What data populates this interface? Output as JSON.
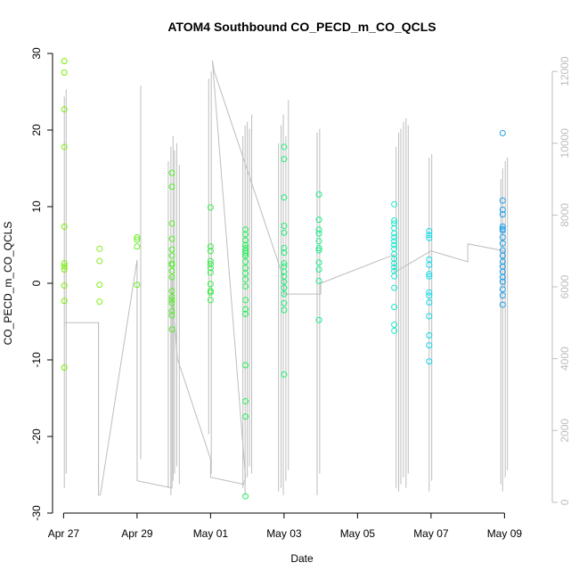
{
  "chart_data": {
    "type": "scatter",
    "title": "ATOM4 Southbound CO_PECD_m_CO_QCLS",
    "xlabel": "Date",
    "ylabel": "CO_PECD_m_CO_QCLS",
    "x_unit": "days since Apr 27",
    "xlim": [
      -0.3,
      13.3
    ],
    "ylim": [
      -30,
      30
    ],
    "y_ticks": [
      -30,
      -20,
      -10,
      0,
      10,
      20,
      30
    ],
    "x_ticks": [
      {
        "day": 0,
        "label": "Apr 27"
      },
      {
        "day": 2,
        "label": "Apr 29"
      },
      {
        "day": 4,
        "label": "May 01"
      },
      {
        "day": 6,
        "label": "May 03"
      },
      {
        "day": 8,
        "label": "May 05"
      },
      {
        "day": 10,
        "label": "May 07"
      },
      {
        "day": 12,
        "label": "May 09"
      }
    ],
    "secondary_axis": {
      "label": "",
      "ylim": [
        -300,
        12500
      ],
      "ticks": [
        0,
        2000,
        4000,
        6000,
        8000,
        10000,
        12000
      ],
      "color": "#bdbdbd"
    },
    "altitude_trace": [
      [
        0.0,
        5000
      ],
      [
        0.0,
        5000
      ],
      [
        0.95,
        5000
      ],
      [
        0.95,
        200
      ],
      [
        1.0,
        200
      ],
      [
        2.0,
        6750
      ],
      [
        2.0,
        600
      ],
      [
        2.95,
        400
      ],
      [
        2.95,
        6300
      ],
      [
        2.95,
        6000
      ],
      [
        3.1,
        4000
      ],
      [
        4.0,
        1200
      ],
      [
        4.0,
        700
      ],
      [
        4.9,
        500
      ],
      [
        4.95,
        700
      ],
      [
        4.05,
        12300
      ],
      [
        4.1,
        12000
      ],
      [
        6.0,
        6200
      ],
      [
        6.0,
        5800
      ],
      [
        7.0,
        5800
      ],
      [
        7.0,
        6100
      ],
      [
        9.0,
        6900
      ],
      [
        9.0,
        6400
      ],
      [
        10.0,
        7000
      ],
      [
        11.0,
        6700
      ],
      [
        11.0,
        7200
      ],
      [
        12.0,
        7000
      ],
      [
        12.0,
        6000
      ]
    ],
    "altitude_curtains": [
      {
        "day": 0.02,
        "min": 400,
        "max": 11300
      },
      {
        "day": 0.07,
        "min": 800,
        "max": 11500
      },
      {
        "day": 0.95,
        "min": 200,
        "max": 5000
      },
      {
        "day": 2.1,
        "min": 1200,
        "max": 11600
      },
      {
        "day": 2.85,
        "min": 400,
        "max": 9500
      },
      {
        "day": 2.92,
        "min": 200,
        "max": 9900
      },
      {
        "day": 2.98,
        "min": 600,
        "max": 10200
      },
      {
        "day": 3.02,
        "min": 800,
        "max": 9800
      },
      {
        "day": 3.08,
        "min": 1000,
        "max": 10000
      },
      {
        "day": 3.15,
        "min": 500,
        "max": 9400
      },
      {
        "day": 3.95,
        "min": 1900,
        "max": 11800
      },
      {
        "day": 4.02,
        "min": 800,
        "max": 12000
      },
      {
        "day": 4.88,
        "min": 400,
        "max": 10200
      },
      {
        "day": 4.94,
        "min": 200,
        "max": 10500
      },
      {
        "day": 5.0,
        "min": 700,
        "max": 10600
      },
      {
        "day": 5.06,
        "min": 1000,
        "max": 10400
      },
      {
        "day": 5.12,
        "min": 800,
        "max": 10800
      },
      {
        "day": 5.85,
        "min": 300,
        "max": 10000
      },
      {
        "day": 5.92,
        "min": 400,
        "max": 10500
      },
      {
        "day": 5.98,
        "min": 200,
        "max": 10800
      },
      {
        "day": 6.05,
        "min": 600,
        "max": 10200
      },
      {
        "day": 6.12,
        "min": 900,
        "max": 11200
      },
      {
        "day": 6.9,
        "min": 200,
        "max": 10300
      },
      {
        "day": 6.97,
        "min": 800,
        "max": 10400
      },
      {
        "day": 9.05,
        "min": 400,
        "max": 9900
      },
      {
        "day": 9.12,
        "min": 300,
        "max": 10300
      },
      {
        "day": 9.18,
        "min": 500,
        "max": 10400
      },
      {
        "day": 9.25,
        "min": 700,
        "max": 10600
      },
      {
        "day": 9.32,
        "min": 400,
        "max": 10700
      },
      {
        "day": 9.38,
        "min": 800,
        "max": 10500
      },
      {
        "day": 9.95,
        "min": 300,
        "max": 9600
      },
      {
        "day": 10.02,
        "min": 600,
        "max": 9700
      },
      {
        "day": 11.9,
        "min": 500,
        "max": 9000
      },
      {
        "day": 11.95,
        "min": 300,
        "max": 9300
      },
      {
        "day": 12.02,
        "min": 700,
        "max": 9500
      },
      {
        "day": 12.08,
        "min": 900,
        "max": 9600
      }
    ],
    "groups": [
      {
        "day": 0.02,
        "color": "#77ef00",
        "values": [
          29.0,
          27.5,
          22.7,
          17.8,
          7.4,
          2.6,
          1.8,
          2.2,
          -0.3,
          -2.3,
          -11.0
        ]
      },
      {
        "day": 0.98,
        "color": "#84ee1a",
        "values": [
          4.5,
          2.9,
          -0.2,
          -2.4
        ]
      },
      {
        "day": 2.0,
        "color": "#66ef20",
        "values": [
          6.0,
          5.7,
          4.8,
          -0.2
        ]
      },
      {
        "day": 2.95,
        "color": "#55ef2a",
        "values": [
          14.4,
          12.6,
          7.8,
          5.8,
          4.4,
          3.6,
          2.6,
          2.4,
          1.6,
          0.8,
          -1.0,
          -1.8,
          -2.2,
          -2.6,
          -3.6,
          -4.2,
          -6.0
        ]
      },
      {
        "day": 4.0,
        "color": "#33ee44",
        "values": [
          9.9,
          4.8,
          4.2,
          2.9,
          2.5,
          2.0,
          1.4,
          -0.1,
          -1.0,
          -1.2,
          -2.2
        ]
      },
      {
        "day": 4.95,
        "color": "#22ee55",
        "values": [
          7.0,
          6.4,
          5.6,
          5.0,
          4.6,
          4.2,
          3.9,
          3.6,
          2.8,
          2.0,
          1.3,
          0.5,
          -0.4,
          -2.2,
          -3.4,
          -4.0,
          -10.7,
          -15.4,
          -17.4,
          -27.8
        ]
      },
      {
        "day": 6.0,
        "color": "#20ee77",
        "values": [
          17.8,
          16.2,
          11.2,
          7.5,
          6.6,
          4.6,
          4.0,
          2.6,
          2.2,
          1.5,
          0.9,
          0.2,
          -0.6,
          -1.4,
          -2.6,
          -3.5,
          -11.9
        ]
      },
      {
        "day": 6.95,
        "color": "#1aee88",
        "values": [
          11.6,
          8.3,
          7.0,
          6.5,
          5.5,
          4.6,
          4.3,
          2.7,
          1.8,
          0.3,
          -4.8
        ]
      },
      {
        "day": 9.0,
        "color": "#15e8cc",
        "values": [
          10.3,
          8.2,
          7.8,
          7.2,
          6.5,
          6.0,
          5.5,
          5.0,
          4.5,
          3.8,
          3.2,
          2.6,
          2.1,
          1.6,
          0.9,
          -0.6,
          -3.1,
          -5.4,
          -6.2
        ]
      },
      {
        "day": 9.95,
        "color": "#12d8e8",
        "values": [
          6.8,
          6.3,
          5.9,
          3.1,
          2.4,
          1.2,
          0.9,
          -1.2,
          -1.6,
          -2.5,
          -4.3,
          -6.8,
          -8.1,
          -10.2
        ]
      },
      {
        "day": 11.95,
        "color": "#1a9ee8",
        "values": [
          19.6,
          10.8,
          9.6,
          9.0,
          7.4,
          7.1,
          6.9,
          6.0,
          5.2,
          4.3,
          3.6,
          2.8,
          2.2,
          1.5,
          0.8,
          0.2,
          -0.8,
          -1.6,
          -2.8
        ]
      }
    ]
  }
}
